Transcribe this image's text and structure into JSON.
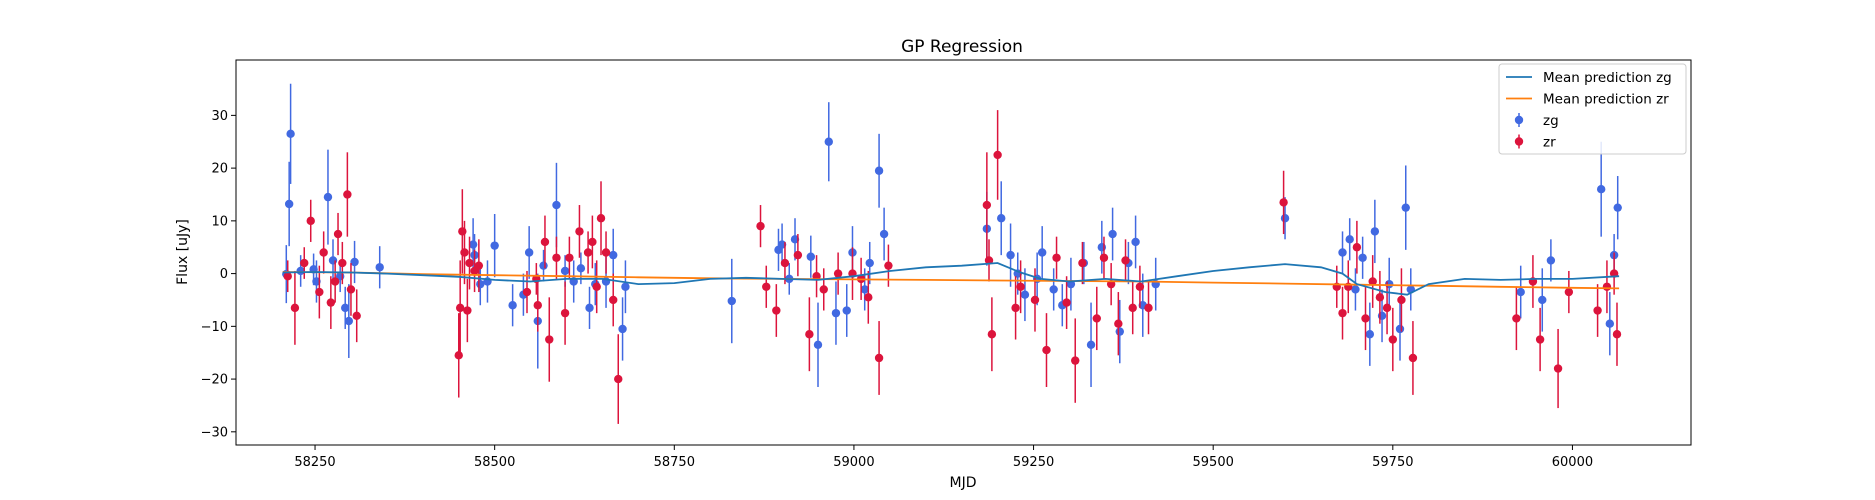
{
  "chart_data": {
    "type": "scatter",
    "title": "GP Regression",
    "xlabel": "MJD",
    "ylabel": "Flux [uJy]",
    "xlim": [
      58140,
      60165
    ],
    "ylim": [
      -32.5,
      40.5
    ],
    "xticks": [
      58250,
      58500,
      58750,
      59000,
      59250,
      59500,
      59750,
      60000
    ],
    "yticks": [
      -30,
      -20,
      -10,
      0,
      10,
      20,
      30
    ],
    "grid": false,
    "legend_position": "top-right",
    "legend": [
      "Mean prediction zg",
      "Mean prediction zr",
      "zg",
      "zr"
    ],
    "colors": {
      "zg": "#4169e1",
      "zr": "#dc143c",
      "mean_zg": "#1f77b4",
      "mean_zr": "#ff7f0e"
    },
    "series": [
      {
        "name": "Mean prediction zg",
        "kind": "line",
        "x": [
          58205,
          58250,
          58300,
          58350,
          58400,
          58450,
          58500,
          58550,
          58600,
          58650,
          58700,
          58750,
          58800,
          58850,
          58900,
          58950,
          59000,
          59050,
          59100,
          59150,
          59200,
          59230,
          59260,
          59300,
          59350,
          59400,
          59450,
          59500,
          59550,
          59600,
          59650,
          59680,
          59700,
          59740,
          59770,
          59800,
          59850,
          59900,
          59950,
          60000,
          60065
        ],
        "y": [
          0.2,
          0.3,
          0.2,
          0.0,
          -0.3,
          -0.6,
          -1.2,
          -1.5,
          -1.0,
          -1.0,
          -2.0,
          -1.8,
          -1.0,
          -0.8,
          -1.0,
          -1.2,
          -0.5,
          0.5,
          1.2,
          1.5,
          2.0,
          0.3,
          -1.0,
          -1.5,
          -1.0,
          -1.5,
          -0.5,
          0.5,
          1.2,
          1.8,
          1.2,
          0.0,
          -2.0,
          -3.5,
          -4.0,
          -2.0,
          -1.0,
          -1.2,
          -1.0,
          -1.0,
          -0.5
        ]
      },
      {
        "name": "Mean prediction zr",
        "kind": "line",
        "x": [
          58205,
          58300,
          58400,
          58500,
          58600,
          58700,
          58800,
          58900,
          59000,
          59100,
          59200,
          59300,
          59400,
          59500,
          59600,
          59700,
          59800,
          59900,
          60000,
          60065
        ],
        "y": [
          0.3,
          0.2,
          -0.1,
          -0.3,
          -0.5,
          -0.7,
          -0.9,
          -1.0,
          -1.1,
          -1.2,
          -1.3,
          -1.4,
          -1.5,
          -1.7,
          -1.9,
          -2.1,
          -2.3,
          -2.5,
          -2.7,
          -2.8
        ]
      },
      {
        "name": "zg",
        "kind": "errorbar",
        "points": [
          [
            58210,
            -0.1,
            5.5
          ],
          [
            58214,
            13.2,
            8
          ],
          [
            58216,
            26.5,
            9.5
          ],
          [
            58230,
            0.5,
            3
          ],
          [
            58248,
            0.8,
            3
          ],
          [
            58252,
            -1.5,
            4
          ],
          [
            58268,
            14.5,
            9
          ],
          [
            58275,
            2.5,
            4
          ],
          [
            58285,
            -0.5,
            3
          ],
          [
            58292,
            -6.5,
            4
          ],
          [
            58297,
            -9,
            7
          ],
          [
            58305,
            2.2,
            4
          ],
          [
            58340,
            1.2,
            4
          ],
          [
            58470,
            5.5,
            5
          ],
          [
            58472,
            3.5,
            4
          ],
          [
            58480,
            -2,
            4
          ],
          [
            58490,
            -1.5,
            4
          ],
          [
            58500,
            5.3,
            6
          ],
          [
            58525,
            -6,
            4
          ],
          [
            58540,
            -4,
            4
          ],
          [
            58548,
            4,
            5
          ],
          [
            58560,
            -9,
            9
          ],
          [
            58568,
            1.5,
            3
          ],
          [
            58586,
            13,
            8
          ],
          [
            58598,
            0.5,
            3
          ],
          [
            58610,
            -1.5,
            4
          ],
          [
            58620,
            1,
            3
          ],
          [
            58632,
            -6.5,
            4
          ],
          [
            58640,
            -2,
            4
          ],
          [
            58655,
            -1.5,
            5
          ],
          [
            58665,
            3.5,
            5
          ],
          [
            58678,
            -10.5,
            6
          ],
          [
            58682,
            -2.5,
            5
          ],
          [
            58830,
            -5.2,
            8
          ],
          [
            58895,
            4.5,
            4
          ],
          [
            58900,
            5.5,
            4
          ],
          [
            58910,
            -1,
            3
          ],
          [
            58918,
            6.5,
            4
          ],
          [
            58940,
            3.2,
            4
          ],
          [
            58950,
            -13.5,
            8
          ],
          [
            58965,
            25,
            7.5
          ],
          [
            58975,
            -7.5,
            6
          ],
          [
            58990,
            -7,
            5
          ],
          [
            58998,
            4,
            5
          ],
          [
            59015,
            -3,
            4
          ],
          [
            59022,
            2,
            4
          ],
          [
            59035,
            19.5,
            7
          ],
          [
            59042,
            7.5,
            5
          ],
          [
            59185,
            8.5,
            7
          ],
          [
            59205,
            10.5,
            7
          ],
          [
            59218,
            3.5,
            6
          ],
          [
            59228,
            0,
            4
          ],
          [
            59238,
            -4,
            5
          ],
          [
            59255,
            -1,
            5
          ],
          [
            59262,
            4,
            5
          ],
          [
            59278,
            -3,
            4
          ],
          [
            59290,
            -6,
            4
          ],
          [
            59302,
            -2,
            5
          ],
          [
            59320,
            2,
            4
          ],
          [
            59330,
            -13.5,
            8
          ],
          [
            59345,
            5,
            5
          ],
          [
            59360,
            7.5,
            5
          ],
          [
            59370,
            -11,
            6
          ],
          [
            59382,
            2,
            4
          ],
          [
            59392,
            6,
            5
          ],
          [
            59402,
            -6,
            6
          ],
          [
            59420,
            -2,
            5
          ],
          [
            59600,
            10.5,
            4
          ],
          [
            59680,
            4,
            4
          ],
          [
            59690,
            6.5,
            4
          ],
          [
            59698,
            -3,
            4
          ],
          [
            59708,
            3,
            4
          ],
          [
            59718,
            -11.5,
            6
          ],
          [
            59725,
            8,
            6
          ],
          [
            59735,
            -8,
            5
          ],
          [
            59745,
            -2,
            5
          ],
          [
            59760,
            -10.5,
            6
          ],
          [
            59768,
            12.5,
            8
          ],
          [
            59775,
            -3,
            4
          ],
          [
            59928,
            -3.5,
            5
          ],
          [
            59958,
            -5,
            6
          ],
          [
            59970,
            2.5,
            4
          ],
          [
            60040,
            16,
            9
          ],
          [
            60052,
            -9.5,
            6
          ],
          [
            60058,
            3.5,
            4
          ],
          [
            60063,
            12.5,
            6
          ]
        ]
      },
      {
        "name": "zr",
        "kind": "errorbar",
        "points": [
          [
            58212,
            -0.5,
            3
          ],
          [
            58222,
            -6.5,
            7
          ],
          [
            58235,
            2,
            3
          ],
          [
            58244,
            10,
            4
          ],
          [
            58256,
            -3.5,
            5
          ],
          [
            58262,
            4,
            4
          ],
          [
            58272,
            -5.5,
            5
          ],
          [
            58278,
            -1.5,
            4
          ],
          [
            58282,
            7.5,
            4
          ],
          [
            58288,
            2,
            4
          ],
          [
            58295,
            15,
            8
          ],
          [
            58300,
            -3,
            5
          ],
          [
            58308,
            -8,
            5
          ],
          [
            58450,
            -15.5,
            8
          ],
          [
            58452,
            -6.5,
            9
          ],
          [
            58455,
            8,
            8
          ],
          [
            58458,
            4,
            6
          ],
          [
            58462,
            -7,
            6
          ],
          [
            58465,
            2,
            5
          ],
          [
            58472,
            0.5,
            4
          ],
          [
            58478,
            1.5,
            5
          ],
          [
            58545,
            -3.5,
            4
          ],
          [
            58558,
            -1,
            3
          ],
          [
            58560,
            -6,
            5
          ],
          [
            58570,
            6,
            5
          ],
          [
            58576,
            -12.5,
            8
          ],
          [
            58586,
            3,
            4
          ],
          [
            58598,
            -7.5,
            6
          ],
          [
            58604,
            3,
            4
          ],
          [
            58618,
            8,
            5
          ],
          [
            58630,
            4,
            4
          ],
          [
            58636,
            6,
            5
          ],
          [
            58642,
            -2.5,
            5
          ],
          [
            58648,
            10.5,
            7
          ],
          [
            58655,
            4,
            4
          ],
          [
            58665,
            -5,
            5
          ],
          [
            58672,
            -20,
            8.5
          ],
          [
            58870,
            9,
            4
          ],
          [
            58878,
            -2.5,
            4
          ],
          [
            58892,
            -7,
            5
          ],
          [
            58904,
            2,
            4
          ],
          [
            58922,
            3.5,
            4
          ],
          [
            58938,
            -11.5,
            7
          ],
          [
            58948,
            -0.5,
            4
          ],
          [
            58958,
            -3,
            4
          ],
          [
            58978,
            0,
            4
          ],
          [
            58998,
            0,
            5
          ],
          [
            59010,
            -1,
            4
          ],
          [
            59020,
            -4.5,
            5
          ],
          [
            59035,
            -16,
            7
          ],
          [
            59048,
            1.5,
            4
          ],
          [
            59185,
            13,
            10
          ],
          [
            59188,
            2.5,
            4
          ],
          [
            59192,
            -11.5,
            7
          ],
          [
            59200,
            22.5,
            8.5
          ],
          [
            59225,
            -6.5,
            6
          ],
          [
            59232,
            -2.5,
            5
          ],
          [
            59252,
            -5,
            6
          ],
          [
            59268,
            -14.5,
            7
          ],
          [
            59282,
            3,
            4
          ],
          [
            59296,
            -5.5,
            5
          ],
          [
            59308,
            -16.5,
            8
          ],
          [
            59318,
            2,
            4
          ],
          [
            59338,
            -8.5,
            6
          ],
          [
            59348,
            3,
            4
          ],
          [
            59358,
            -2,
            4
          ],
          [
            59368,
            -9.5,
            6
          ],
          [
            59378,
            2.5,
            4
          ],
          [
            59388,
            -6.5,
            5
          ],
          [
            59398,
            -2.5,
            4
          ],
          [
            59410,
            -6.5,
            5
          ],
          [
            59598,
            13.5,
            6
          ],
          [
            59672,
            -2.5,
            4
          ],
          [
            59680,
            -7.5,
            5
          ],
          [
            59688,
            -2.5,
            5
          ],
          [
            59700,
            5,
            5
          ],
          [
            59712,
            -8.5,
            6
          ],
          [
            59722,
            -1.5,
            5
          ],
          [
            59732,
            -4.5,
            5
          ],
          [
            59742,
            -6.5,
            5
          ],
          [
            59750,
            -12.5,
            6
          ],
          [
            59762,
            -5,
            6
          ],
          [
            59778,
            -16,
            7
          ],
          [
            59922,
            -8.5,
            6
          ],
          [
            59945,
            -1.5,
            5
          ],
          [
            59955,
            -12.5,
            6
          ],
          [
            59980,
            -18,
            7.5
          ],
          [
            59995,
            -3.5,
            4
          ],
          [
            60035,
            -7,
            5
          ],
          [
            60048,
            -2.5,
            5
          ],
          [
            60058,
            0,
            4
          ],
          [
            60062,
            -11.5,
            6
          ]
        ]
      }
    ]
  }
}
